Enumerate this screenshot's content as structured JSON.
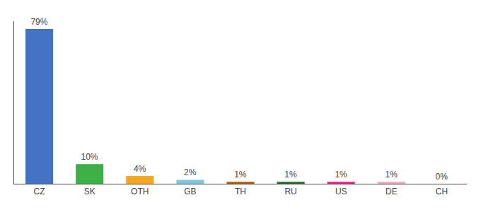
{
  "chart_data": {
    "type": "bar",
    "categories": [
      "CZ",
      "SK",
      "OTH",
      "GB",
      "TH",
      "RU",
      "US",
      "DE",
      "CH"
    ],
    "values": [
      79,
      10,
      4,
      2,
      1,
      1,
      1,
      1,
      0
    ],
    "value_labels": [
      "79%",
      "10%",
      "4%",
      "2%",
      "1%",
      "1%",
      "1%",
      "1%",
      "0%"
    ],
    "colors": [
      "#4472c4",
      "#3cb044",
      "#f5a623",
      "#7ec8e3",
      "#b85c00",
      "#2d6a2d",
      "#e91e8c",
      "#f4a7c3",
      "#cccccc"
    ],
    "ylim": [
      0,
      83
    ],
    "data_labels": true,
    "grid": false,
    "tick_labels": "x"
  }
}
